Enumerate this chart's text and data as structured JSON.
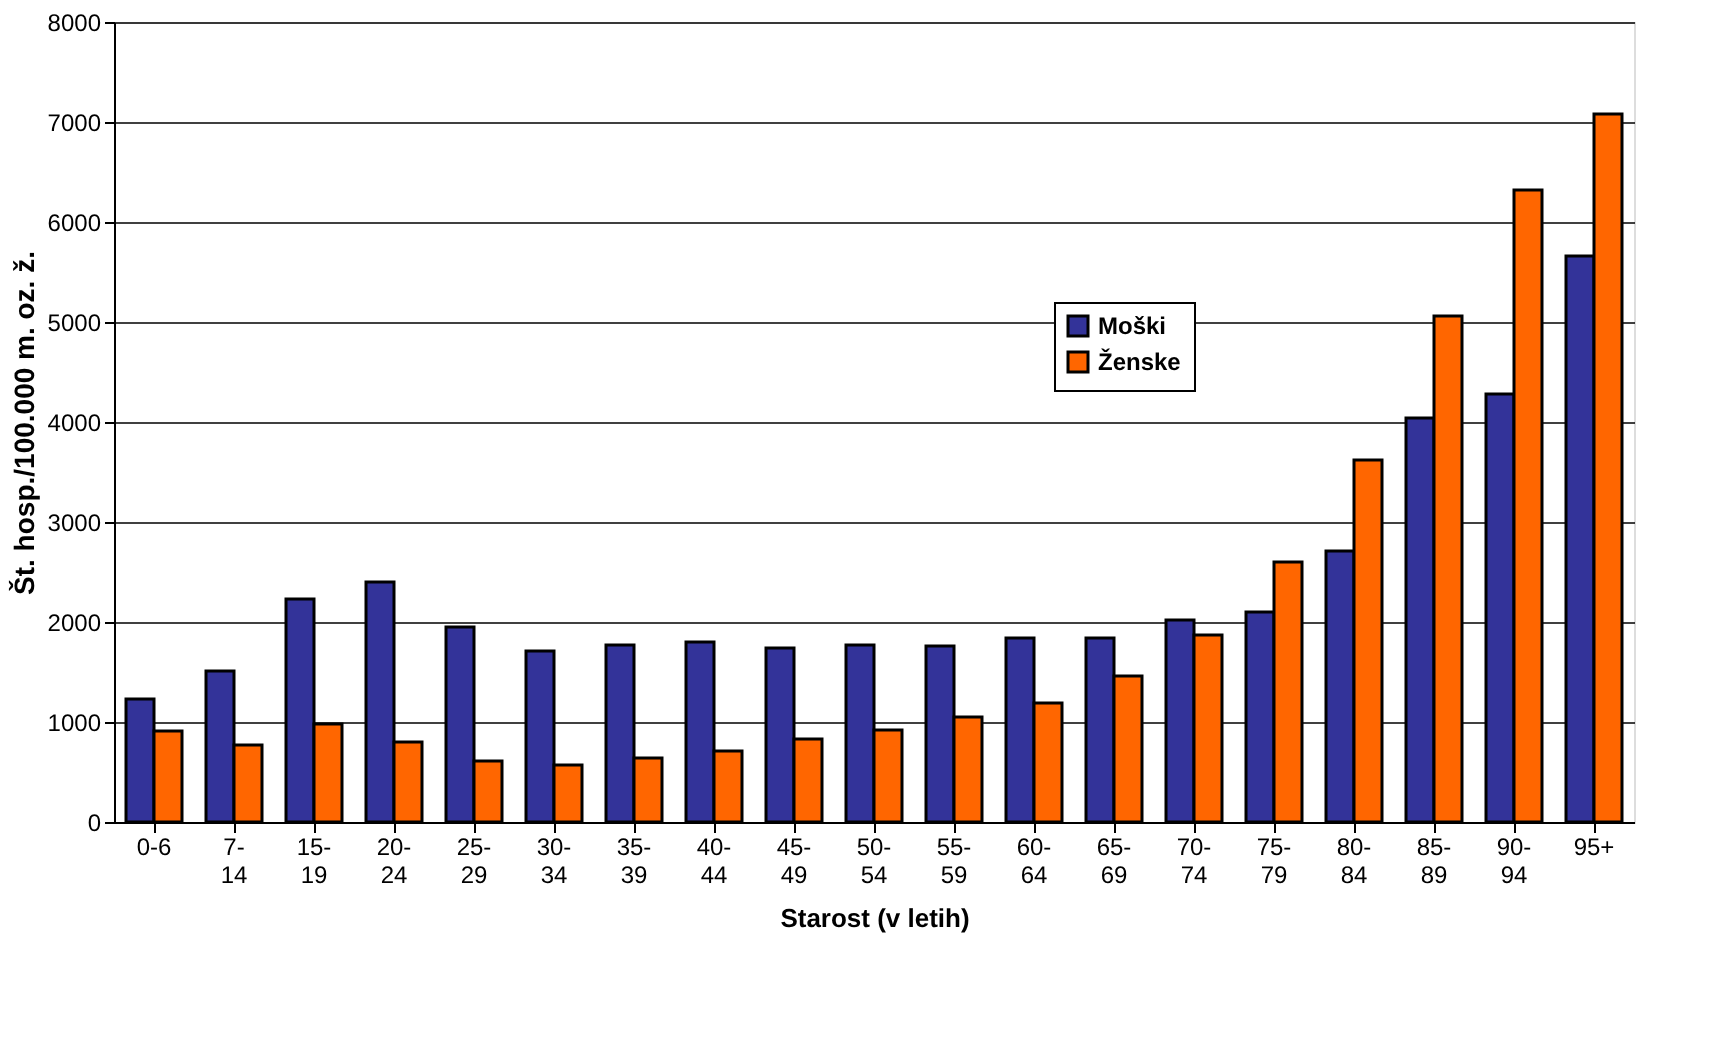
{
  "chart_data": {
    "type": "bar",
    "xlabel": "Starost (v letih)",
    "ylabel": "Št. hosp./100.000 m. oz. ž.",
    "categories": [
      "0-6",
      "7- 14",
      "15- 19",
      "20- 24",
      "25- 29",
      "30- 34",
      "35- 39",
      "40- 44",
      "45- 49",
      "50- 54",
      "55- 59",
      "60- 64",
      "65- 69",
      "70- 74",
      "75- 79",
      "80- 84",
      "85- 89",
      "90- 94",
      "95+"
    ],
    "series": [
      {
        "name": "Moški",
        "color": "#333399",
        "values": [
          1230,
          1510,
          2230,
          2400,
          1950,
          1710,
          1770,
          1800,
          1740,
          1770,
          1760,
          1840,
          1840,
          2020,
          2100,
          2710,
          4040,
          4280,
          5660
        ]
      },
      {
        "name": "Ženske",
        "color": "#ff6600",
        "values": [
          910,
          770,
          980,
          800,
          610,
          570,
          640,
          710,
          830,
          920,
          1050,
          1190,
          1460,
          1870,
          2600,
          3620,
          5060,
          6320,
          7080
        ]
      }
    ],
    "ylim": [
      0,
      8000
    ],
    "yticks": [
      0,
      1000,
      2000,
      3000,
      4000,
      5000,
      6000,
      7000,
      8000
    ],
    "grid": "y",
    "legend": "right"
  }
}
